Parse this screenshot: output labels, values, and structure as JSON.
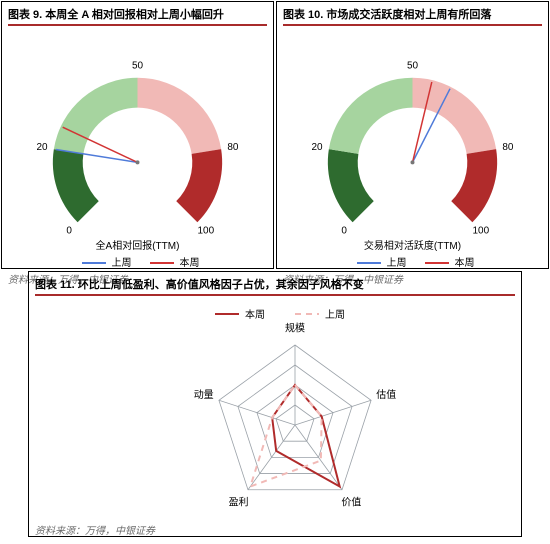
{
  "gauge_left": {
    "title": "图表 9. 本周全 A 相对回报相对上周小幅回升",
    "type": "gauge",
    "scale_min": 0,
    "scale_max": 100,
    "ticks": [
      0,
      20,
      50,
      80,
      100
    ],
    "segments": [
      {
        "from": 0,
        "to": 20,
        "color": "#2e6b2f"
      },
      {
        "from": 20,
        "to": 50,
        "color": "#a6d49f"
      },
      {
        "from": 50,
        "to": 80,
        "color": "#f1b9b6"
      },
      {
        "from": 80,
        "to": 100,
        "color": "#b02b2b"
      }
    ],
    "needles": [
      {
        "value": 20,
        "color": "#4f7bd9",
        "label": "上周"
      },
      {
        "value": 26,
        "color": "#d23434",
        "label": "本周"
      }
    ],
    "subtitle": "全A相对回报(TTM)",
    "legend": [
      {
        "label": "上周",
        "color": "#4f7bd9"
      },
      {
        "label": "本周",
        "color": "#d23434"
      }
    ],
    "tick_fontsize": 10,
    "source": "资料来源：万得，中银证券"
  },
  "gauge_right": {
    "title": "图表 10. 市场成交活跃度相对上周有所回落",
    "type": "gauge",
    "scale_min": 0,
    "scale_max": 100,
    "ticks": [
      0,
      20,
      50,
      80,
      100
    ],
    "segments": [
      {
        "from": 0,
        "to": 20,
        "color": "#2e6b2f"
      },
      {
        "from": 20,
        "to": 50,
        "color": "#a6d49f"
      },
      {
        "from": 50,
        "to": 80,
        "color": "#f1b9b6"
      },
      {
        "from": 80,
        "to": 100,
        "color": "#b02b2b"
      }
    ],
    "needles": [
      {
        "value": 60,
        "color": "#4f7bd9",
        "label": "上周"
      },
      {
        "value": 55,
        "color": "#d23434",
        "label": "本周"
      }
    ],
    "subtitle": "交易相对活跃度(TTM)",
    "legend": [
      {
        "label": "上周",
        "color": "#4f7bd9"
      },
      {
        "label": "本周",
        "color": "#d23434"
      }
    ],
    "tick_fontsize": 10,
    "source": "资料来源：万得，中银证券"
  },
  "radar": {
    "title": "图表 11. 环比上周低盈利、高价值风格因子占优，其余因子风格不变",
    "type": "radar",
    "axes": [
      "规模",
      "估值",
      "价值",
      "盈利",
      "动量"
    ],
    "rings": 4,
    "series": [
      {
        "label": "本周",
        "color": "#b02b2b",
        "dash": "none",
        "values": [
          0.5,
          0.35,
          0.95,
          0.4,
          0.3
        ]
      },
      {
        "label": "上周",
        "color": "#f1b9b6",
        "dash": "6,5",
        "values": [
          0.5,
          0.35,
          0.55,
          0.95,
          0.3
        ]
      }
    ],
    "legend": [
      {
        "label": "本周",
        "color": "#b02b2b",
        "dash": "none"
      },
      {
        "label": "上周",
        "color": "#f1b9b6",
        "dash": "6,5"
      }
    ],
    "axis_label_fontsize": 10,
    "grid_color": "#9aa1a8",
    "source": "资料来源：万得，中银证券"
  }
}
